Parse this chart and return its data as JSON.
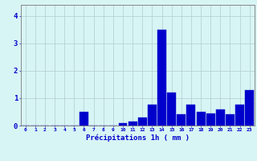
{
  "hours": [
    0,
    1,
    2,
    3,
    4,
    5,
    6,
    7,
    8,
    9,
    10,
    11,
    12,
    13,
    14,
    15,
    16,
    17,
    18,
    19,
    20,
    21,
    22,
    23
  ],
  "values": [
    0,
    0,
    0,
    0,
    0,
    0,
    0.5,
    0,
    0,
    0,
    0.1,
    0.15,
    0.3,
    0.75,
    3.5,
    1.2,
    0.4,
    0.75,
    0.5,
    0.45,
    0.6,
    0.4,
    0.75,
    1.3
  ],
  "bar_color": "#0000cc",
  "bar_edge_color": "#0044ee",
  "background_color": "#d8f5f5",
  "grid_color": "#b0cccc",
  "axis_color": "#888888",
  "text_color": "#0000cc",
  "xlabel": "Précipitations 1h ( mm )",
  "ylim": [
    0,
    4.4
  ],
  "yticks": [
    0,
    1,
    2,
    3,
    4
  ],
  "xlim": [
    -0.5,
    23.5
  ]
}
